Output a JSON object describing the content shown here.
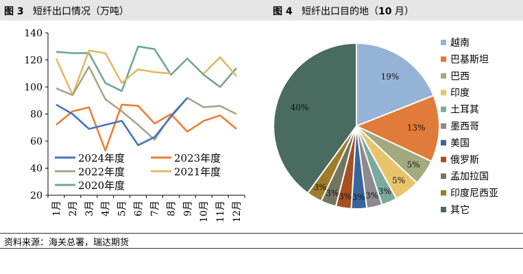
{
  "header": {
    "left_fig": "图 3",
    "left_title": "短纤出口情况（万吨）",
    "right_fig": "图 4",
    "right_title_pre": "短纤出口目的地（",
    "right_title_num": "10",
    "right_title_post": " 月）"
  },
  "source": "资料来源：海关总署，瑞达期货",
  "chart_data": [
    {
      "type": "line",
      "categories": [
        "1月",
        "2月",
        "3月",
        "4月",
        "5月",
        "6月",
        "7月",
        "8月",
        "9月",
        "10月",
        "11月",
        "12月"
      ],
      "ylim": [
        20,
        140
      ],
      "yticks": [
        20,
        40,
        60,
        80,
        100,
        120,
        140
      ],
      "legend_position": "bottom-left",
      "series": [
        {
          "name": "2024年度",
          "color": "#4472C4",
          "values": [
            87,
            80,
            69,
            72,
            75,
            57,
            63,
            78,
            92,
            null,
            null,
            null
          ]
        },
        {
          "name": "2023年度",
          "color": "#ED7D31",
          "values": [
            72,
            82,
            85,
            53,
            87,
            86,
            73,
            80,
            67,
            75,
            79,
            69
          ]
        },
        {
          "name": "2022年度",
          "color": "#A5A58A",
          "values": [
            99,
            94,
            115,
            91,
            82,
            72,
            61,
            79,
            92,
            85,
            86,
            80
          ]
        },
        {
          "name": "2021年度",
          "color": "#E2B861",
          "values": [
            121,
            94,
            127,
            125,
            103,
            113,
            111,
            110,
            null,
            110,
            122,
            108
          ]
        },
        {
          "name": "2020年度",
          "color": "#6FA595",
          "values": [
            126,
            125,
            125,
            103,
            97,
            130,
            128,
            109,
            121,
            109,
            100,
            114
          ]
        }
      ]
    },
    {
      "type": "pie",
      "slices": [
        {
          "name": "越南",
          "value": 19,
          "label": "19%",
          "color": "#95B3D7"
        },
        {
          "name": "巴基斯坦",
          "value": 13,
          "label": "13%",
          "color": "#E07B39"
        },
        {
          "name": "巴西",
          "value": 5,
          "label": "5%",
          "color": "#A4AA7F"
        },
        {
          "name": "印度",
          "value": 5,
          "label": "5%",
          "color": "#E9C46A"
        },
        {
          "name": "土耳其",
          "value": 3,
          "label": "3%",
          "color": "#7BA99B"
        },
        {
          "name": "墨西哥",
          "value": 3,
          "label": "3%",
          "color": "#8E8A8E"
        },
        {
          "name": "美国",
          "value": 3,
          "label": "3%",
          "color": "#3A659C"
        },
        {
          "name": "俄罗斯",
          "value": 3,
          "label": "3%",
          "color": "#A84F21"
        },
        {
          "name": "孟加拉国",
          "value": 3,
          "label": "3%",
          "color": "#717661"
        },
        {
          "name": "印度尼西亚",
          "value": 3,
          "label": "3%",
          "color": "#9E7C29"
        },
        {
          "name": "其它",
          "value": 40,
          "label": "40%",
          "color": "#4A6B5F"
        }
      ],
      "legend_position": "right"
    }
  ]
}
